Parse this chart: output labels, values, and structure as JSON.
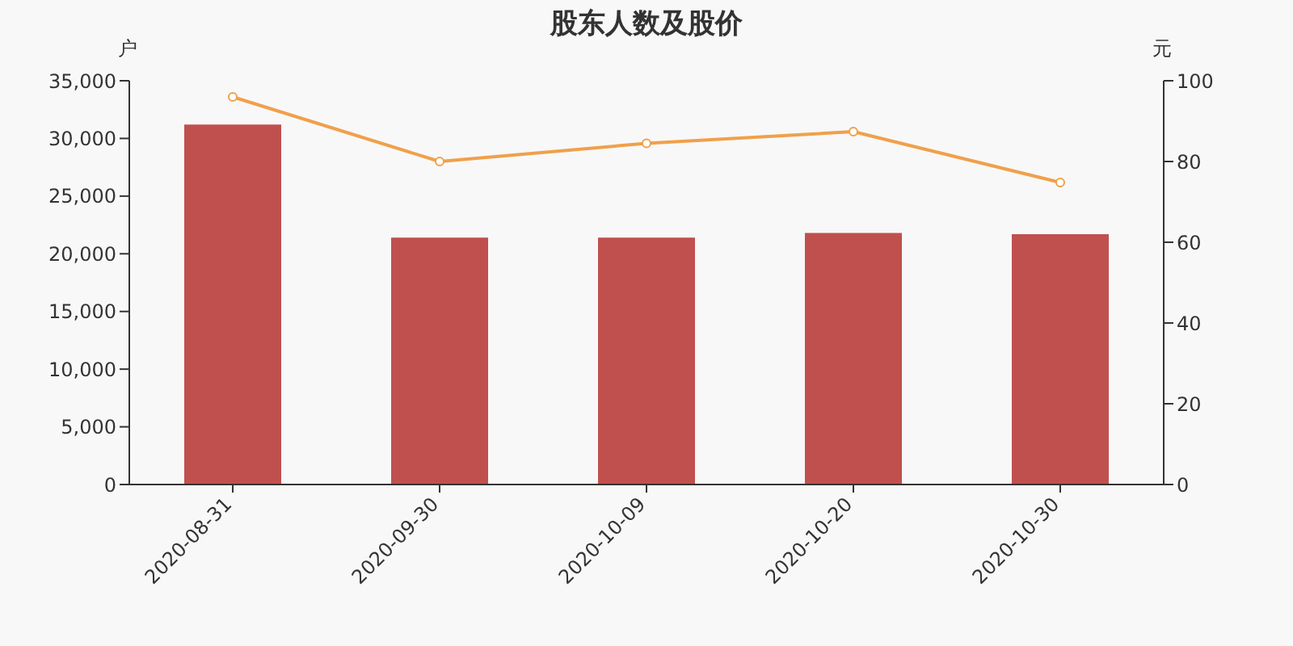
{
  "chart_data": {
    "type": "bar",
    "title": "股东人数及股价",
    "ylabel": "户",
    "y2label": "元",
    "categories": [
      "2020-08-31",
      "2020-09-30",
      "2020-10-09",
      "2020-10-20",
      "2020-10-30"
    ],
    "series": [
      {
        "color": "#c0504d",
        "values": [
          31200,
          21400,
          21400,
          21800,
          21700
        ]
      },
      {
        "type": "line",
        "axis": "y2",
        "color": "#f0a04b",
        "values": [
          96.0,
          80.0,
          84.5,
          87.4,
          74.8
        ]
      }
    ],
    "ylim": [
      0,
      35000
    ],
    "yticks": [
      0,
      {
        "value": 5000,
        "label": "5,000"
      },
      {
        "value": 10000,
        "label": "10,000"
      },
      {
        "value": 15000,
        "label": "15,000"
      },
      {
        "value": 20000,
        "label": "20,000"
      },
      {
        "value": 25000,
        "label": "25,000"
      },
      {
        "value": 30000,
        "label": "30,000"
      },
      {
        "value": 35000,
        "label": "35,000"
      }
    ],
    "y2lim": [
      0,
      100
    ],
    "y2ticks": [
      0,
      20,
      40,
      60,
      80,
      100
    ],
    "grid": false,
    "marker": "circle",
    "line_style": "solid"
  }
}
